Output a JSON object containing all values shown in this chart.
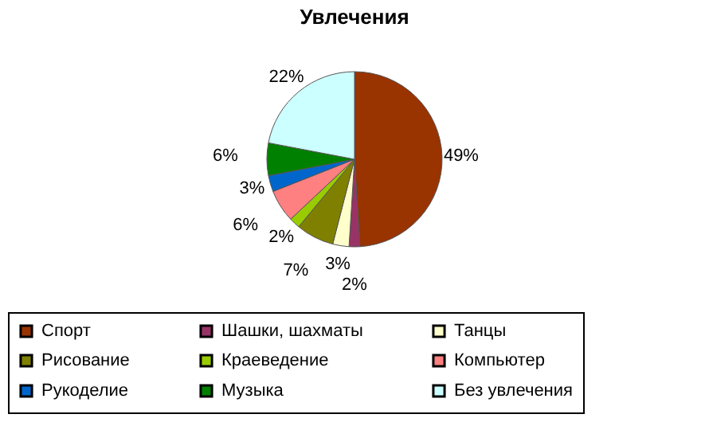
{
  "chart_data": {
    "type": "pie",
    "title": "Увлечения",
    "categories": [
      "Спорт",
      "Шашки, шахматы",
      "Танцы",
      "Рисование",
      "Краеведение",
      "Компьютер",
      "Рукоделие",
      "Музыка",
      "Без увлечения"
    ],
    "values": [
      49,
      2,
      3,
      7,
      2,
      6,
      3,
      6,
      22
    ],
    "value_labels": [
      "49%",
      "2%",
      "3%",
      "7%",
      "2%",
      "6%",
      "3%",
      "6%",
      "22%"
    ],
    "colors": [
      "#993300",
      "#993366",
      "#ffffcc",
      "#808000",
      "#99cc00",
      "#ff8080",
      "#0066cc",
      "#008000",
      "#ccffff"
    ],
    "legend": "bottom"
  }
}
